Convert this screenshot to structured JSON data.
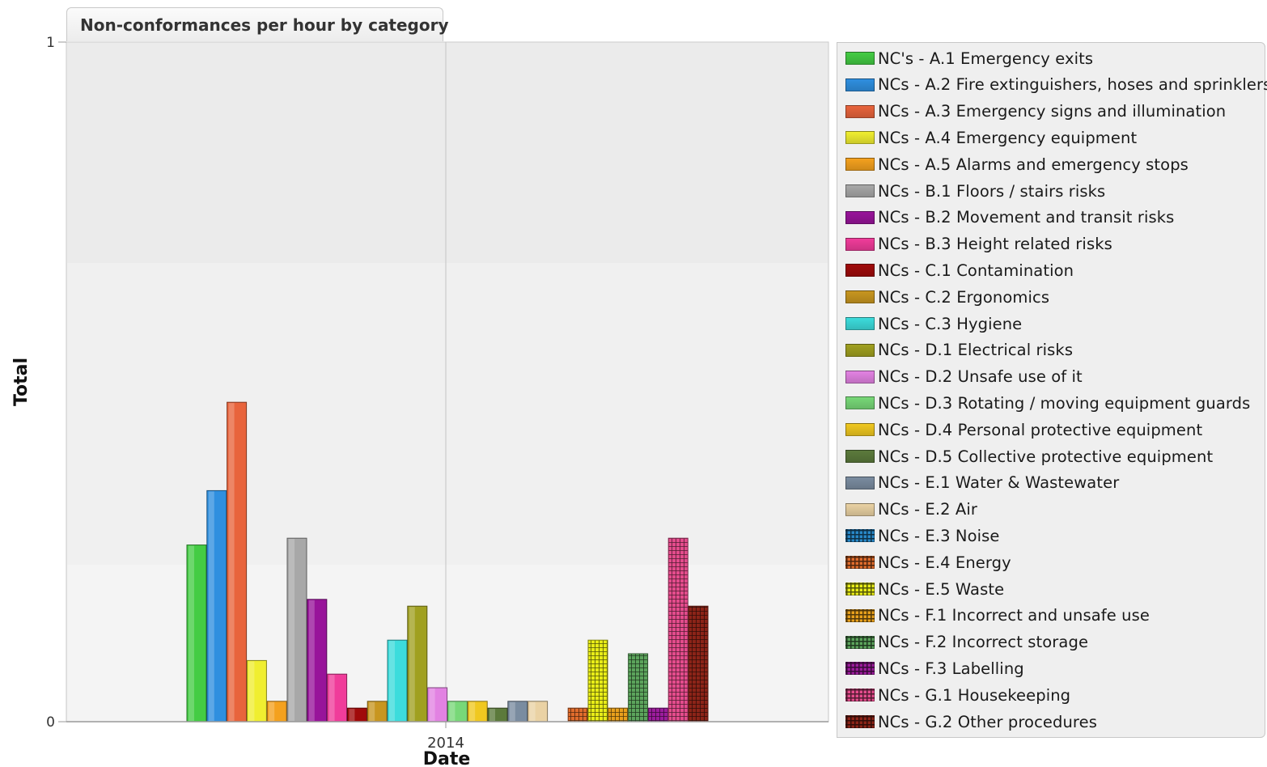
{
  "chart_data": {
    "type": "bar",
    "title": "Non-conformances per hour by category",
    "xlabel": "Date",
    "ylabel": "Total",
    "categories": [
      "2014"
    ],
    "ylim": [
      0,
      1
    ],
    "y_ticks": [
      "0",
      "1"
    ],
    "grid": false,
    "legend_position": "right",
    "series": [
      {
        "name": "NC's - A.1 Emergency exits",
        "values": [
          0.26
        ],
        "color": "#44cc44",
        "pattern": "solid"
      },
      {
        "name": "NCs - A.2 Fire extinguishers, hoses and sprinklers",
        "values": [
          0.34
        ],
        "color": "#2f8fdf",
        "pattern": "solid"
      },
      {
        "name": "NCs - A.3 Emergency signs and illumination",
        "values": [
          0.47
        ],
        "color": "#e8643c",
        "pattern": "solid"
      },
      {
        "name": "NCs - A.4 Emergency equipment",
        "values": [
          0.09
        ],
        "color": "#f0ee30",
        "pattern": "solid"
      },
      {
        "name": "NCs - A.5 Alarms and emergency stops",
        "values": [
          0.03
        ],
        "color": "#f4a11e",
        "pattern": "solid"
      },
      {
        "name": "NCs - B.1 Floors / stairs risks",
        "values": [
          0.27
        ],
        "color": "#a8a8a8",
        "pattern": "solid"
      },
      {
        "name": "NCs - B.2 Movement and transit risks",
        "values": [
          0.18
        ],
        "color": "#98149a",
        "pattern": "solid"
      },
      {
        "name": "NCs - B.3 Height related risks",
        "values": [
          0.07
        ],
        "color": "#f03c9a",
        "pattern": "solid"
      },
      {
        "name": "NCs - C.1 Contamination",
        "values": [
          0.02
        ],
        "color": "#a00a0a",
        "pattern": "solid"
      },
      {
        "name": "NCs - C.2 Ergonomics",
        "values": [
          0.03
        ],
        "color": "#c89620",
        "pattern": "solid"
      },
      {
        "name": "NCs - C.3 Hygiene",
        "values": [
          0.12
        ],
        "color": "#3cdcdc",
        "pattern": "solid"
      },
      {
        "name": "NCs - D.1 Electrical risks",
        "values": [
          0.17
        ],
        "color": "#a0a020",
        "pattern": "solid"
      },
      {
        "name": "NCs - D.2 Unsafe use of it",
        "values": [
          0.05
        ],
        "color": "#e282e2",
        "pattern": "solid"
      },
      {
        "name": "NCs - D.3 Rotating / moving equipment guards",
        "values": [
          0.03
        ],
        "color": "#78d878",
        "pattern": "solid"
      },
      {
        "name": "NCs - D.4 Personal protective equipment",
        "values": [
          0.03
        ],
        "color": "#f0c820",
        "pattern": "solid"
      },
      {
        "name": "NCs - D.5 Collective protective equipment",
        "values": [
          0.02
        ],
        "color": "#5c7a3c",
        "pattern": "solid"
      },
      {
        "name": "NCs - E.1 Water & Wastewater",
        "values": [
          0.03
        ],
        "color": "#7a8ca0",
        "pattern": "solid"
      },
      {
        "name": "NCs - E.2 Air",
        "values": [
          0.03
        ],
        "color": "#ead2a4",
        "pattern": "solid"
      },
      {
        "name": "NCs - E.3 Noise",
        "values": [
          0
        ],
        "color": "#2888c8",
        "pattern": "grid"
      },
      {
        "name": "NCs - E.4 Energy",
        "values": [
          0.02
        ],
        "color": "#e06c2c",
        "pattern": "grid"
      },
      {
        "name": "NCs - E.5 Waste",
        "values": [
          0.12
        ],
        "color": "#e8ec18",
        "pattern": "grid"
      },
      {
        "name": "NCs - F.1 Incorrect and unsafe use",
        "values": [
          0.02
        ],
        "color": "#e8a01c",
        "pattern": "grid"
      },
      {
        "name": "NCs - F.2 Incorrect storage",
        "values": [
          0.1
        ],
        "color": "#5ca45c",
        "pattern": "grid"
      },
      {
        "name": "NCs - F.3 Labelling",
        "values": [
          0.02
        ],
        "color": "#9c1c9c",
        "pattern": "grid"
      },
      {
        "name": "NCs - G.1 Housekeeping",
        "values": [
          0.27
        ],
        "color": "#e44c8c",
        "pattern": "grid"
      },
      {
        "name": "NCs - G.2 Other procedures",
        "values": [
          0.17
        ],
        "color": "#8c2418",
        "pattern": "grid"
      }
    ]
  }
}
